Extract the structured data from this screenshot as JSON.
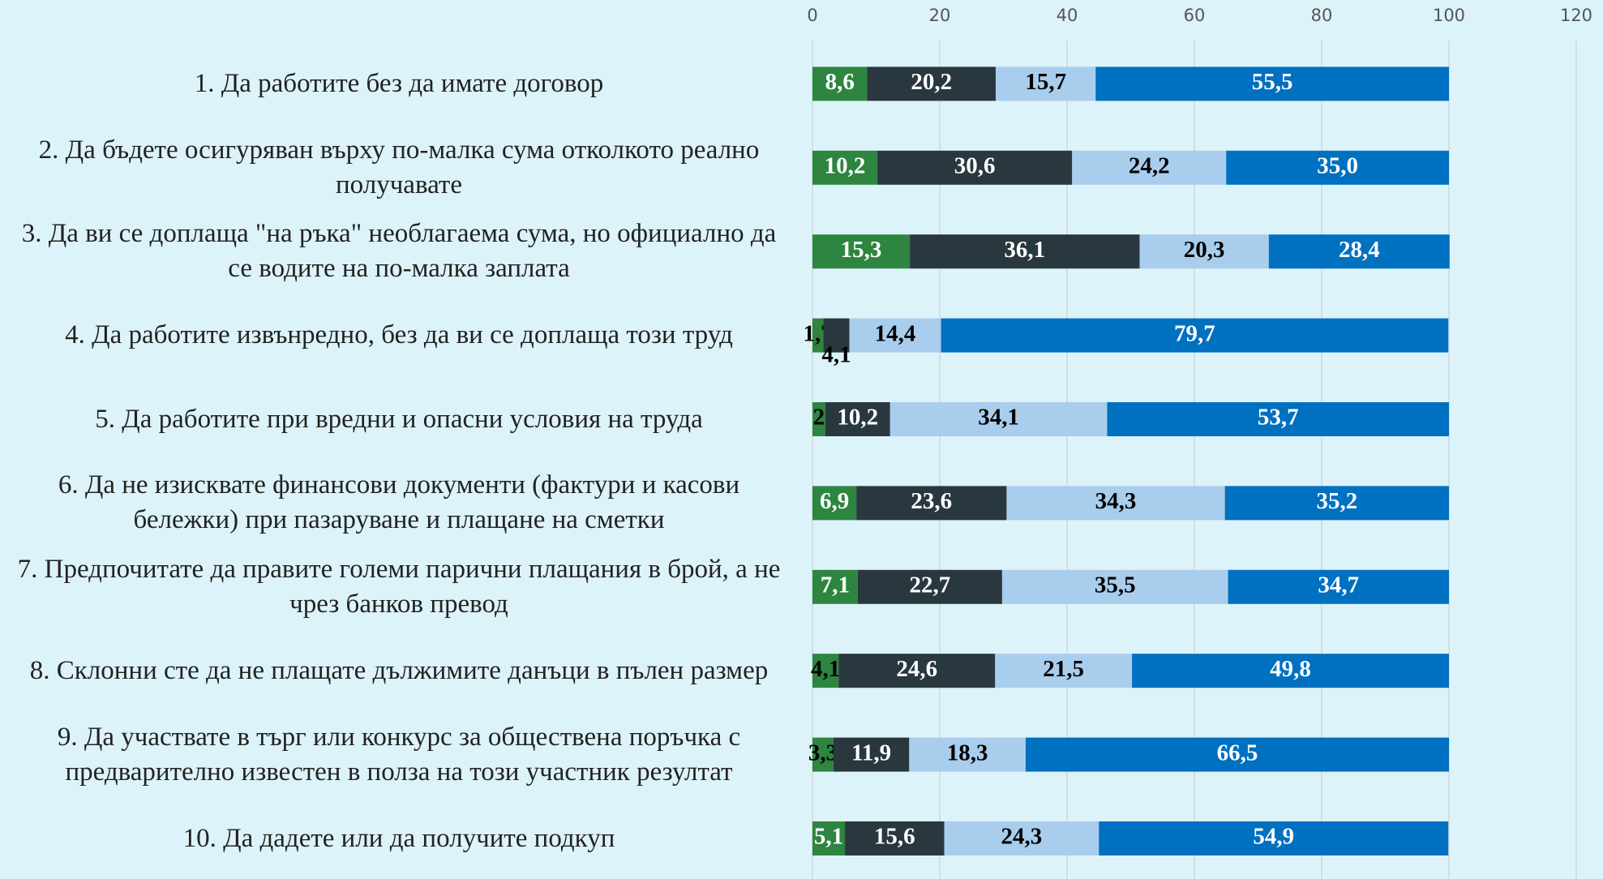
{
  "chart_data": {
    "type": "stacked_bar_horizontal",
    "categories": [
      "1. Да работите без да имате договор",
      "2. Да бъдете осигуряван върху по-малка сума отколкото реално получавате",
      "3. Да ви се доплаща \"на ръка\" необлагаема сума, но официално да се водите на по-малка заплата",
      "4. Да работите извънредно, без да ви се доплаща този труд",
      "5. Да работите при вредни и опасни условия на труда",
      "6. Да не изисквате финансови документи (фактури и касови бележки) при пазаруване и плащане на сметки",
      "7. Предпочитате да правите големи парични плащания в брой, а не чрез банков превод",
      "8. Склонни сте да не плащате дължимите данъци в пълен размер",
      "9. Да участвате в търг или конкурс за обществена поръчка с предварително известен в полза на този участник резултат",
      "10. Да дадете или да получите подкуп"
    ],
    "series": [
      {
        "color": "#2e8540",
        "values": [
          8.6,
          10.2,
          15.3,
          1.7,
          2,
          6.9,
          7.1,
          4.1,
          3.3,
          5.1
        ],
        "value_labels": [
          "8,6",
          "10,2",
          "15,3",
          "1,7",
          "2",
          "6,9",
          "7,1",
          "4,1",
          "3,3",
          "5,1"
        ]
      },
      {
        "color": "#29383e",
        "values": [
          20.2,
          30.6,
          36.1,
          4.1,
          10.2,
          23.6,
          22.7,
          24.6,
          11.9,
          15.6
        ],
        "value_labels": [
          "20,2",
          "30,6",
          "36,1",
          "4,1",
          "10,2",
          "23,6",
          "22,7",
          "24,6",
          "11,9",
          "15,6"
        ]
      },
      {
        "color": "#a9cdec",
        "values": [
          15.7,
          24.2,
          20.3,
          14.4,
          34.1,
          34.3,
          35.5,
          21.5,
          18.3,
          24.3
        ],
        "value_labels": [
          "15,7",
          "24,2",
          "20,3",
          "14,4",
          "34,1",
          "34,3",
          "35,5",
          "21,5",
          "18,3",
          "24,3"
        ]
      },
      {
        "color": "#0070c0",
        "values": [
          55.5,
          35.0,
          28.4,
          79.7,
          53.7,
          35.2,
          34.7,
          49.8,
          66.5,
          54.9
        ],
        "value_labels": [
          "55,5",
          "35,0",
          "28,4",
          "79,7",
          "53,7",
          "35,2",
          "34,7",
          "49,8",
          "66,5",
          "54,9"
        ]
      }
    ],
    "xlim": [
      0,
      120
    ],
    "xticks": [
      0,
      20,
      40,
      60,
      80,
      100,
      120
    ],
    "grid": true
  }
}
